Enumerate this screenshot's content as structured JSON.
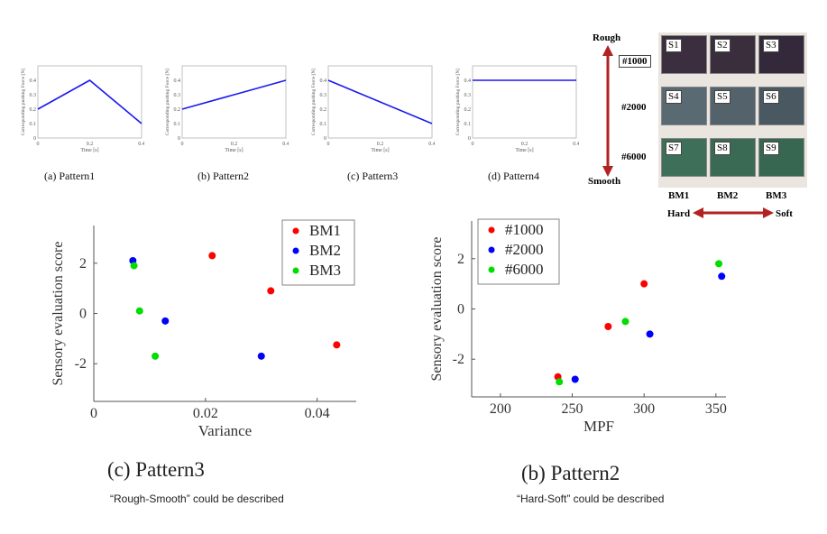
{
  "pattern_panels": [
    {
      "caption": "(a) Pattern1"
    },
    {
      "caption": "(b) Pattern2"
    },
    {
      "caption": "(c) Pattern3"
    },
    {
      "caption": "(d) Pattern4"
    }
  ],
  "sample_photo": {
    "top_label": "Rough",
    "bottom_label": "Smooth",
    "row_labels": [
      "#1000",
      "#2000",
      "#6000"
    ],
    "col_labels": [
      "BM1",
      "BM2",
      "BM3"
    ],
    "left_direction": "Hard",
    "right_direction": "Soft",
    "tiles": [
      {
        "label": "S1",
        "color": "#3b2f3f"
      },
      {
        "label": "S2",
        "color": "#3a2e3d"
      },
      {
        "label": "S3",
        "color": "#34293a"
      },
      {
        "label": "S4",
        "color": "#5a6a73"
      },
      {
        "label": "S5",
        "color": "#54626b"
      },
      {
        "label": "S6",
        "color": "#4a5862"
      },
      {
        "label": "S7",
        "color": "#3e6f58"
      },
      {
        "label": "S8",
        "color": "#3b6a54"
      },
      {
        "label": "S9",
        "color": "#376751"
      }
    ],
    "arrow_color": "#b22222"
  },
  "left_plot": {
    "caption": "(c) Pattern3",
    "note": "“Rough-Smooth” could be described"
  },
  "right_plot": {
    "caption": "(b) Pattern2",
    "note": "“Hard-Soft” could be described"
  },
  "chart_data": [
    {
      "type": "line",
      "id": "pattern1",
      "ylabel": "Corresponding pushing Force [N]",
      "xlabel": "Time [s]",
      "xlim": [
        0,
        0.4
      ],
      "ylim": [
        0,
        0.5
      ],
      "xticks": [
        "0",
        "0.2",
        "0.4"
      ],
      "yticks": [
        "0",
        "0.1",
        "0.2",
        "0.3",
        "0.4"
      ],
      "series": [
        {
          "x": [
            0,
            0.2,
            0.4
          ],
          "y": [
            0.2,
            0.4,
            0.1
          ]
        }
      ]
    },
    {
      "type": "line",
      "id": "pattern2",
      "ylabel": "Corresponding pushing Force [N]",
      "xlabel": "Time [s]",
      "xlim": [
        0,
        0.4
      ],
      "ylim": [
        0,
        0.5
      ],
      "xticks": [
        "0",
        "0.2",
        "0.4"
      ],
      "yticks": [
        "0",
        "0.1",
        "0.2",
        "0.3",
        "0.4"
      ],
      "series": [
        {
          "x": [
            0,
            0.4
          ],
          "y": [
            0.2,
            0.4
          ]
        }
      ]
    },
    {
      "type": "line",
      "id": "pattern3",
      "ylabel": "Corresponding pushing Force [N]",
      "xlabel": "Time [s]",
      "xlim": [
        0,
        0.4
      ],
      "ylim": [
        0,
        0.5
      ],
      "xticks": [
        "0",
        "0.2",
        "0.4"
      ],
      "yticks": [
        "0",
        "0.1",
        "0.2",
        "0.3",
        "0.4"
      ],
      "series": [
        {
          "x": [
            0,
            0.4
          ],
          "y": [
            0.4,
            0.1
          ]
        }
      ]
    },
    {
      "type": "line",
      "id": "pattern4",
      "ylabel": "Corresponding pushing Force [N]",
      "xlabel": "Time [s]",
      "xlim": [
        0,
        0.4
      ],
      "ylim": [
        0,
        0.5
      ],
      "xticks": [
        "0",
        "0.2",
        "0.4"
      ],
      "yticks": [
        "0",
        "0.1",
        "0.2",
        "0.3",
        "0.4"
      ],
      "series": [
        {
          "x": [
            0,
            0.4
          ],
          "y": [
            0.4,
            0.4
          ]
        }
      ]
    },
    {
      "type": "scatter",
      "id": "variance",
      "xlabel": "Variance",
      "ylabel": "Sensory evaluation score",
      "xlim": [
        0,
        0.047
      ],
      "ylim": [
        -3.5,
        3.5
      ],
      "xticks": [
        "0",
        "0.02",
        "0.04"
      ],
      "yticks": [
        "-2",
        "0",
        "2"
      ],
      "legend_position": "top-right",
      "series": [
        {
          "name": "BM1",
          "color": "#ff0000",
          "points": [
            [
              0.0212,
              2.3
            ],
            [
              0.0317,
              0.9
            ],
            [
              0.0435,
              -1.25
            ]
          ]
        },
        {
          "name": "BM2",
          "color": "#0000ff",
          "points": [
            [
              0.007,
              2.1
            ],
            [
              0.0128,
              -0.3
            ],
            [
              0.03,
              -1.7
            ]
          ]
        },
        {
          "name": "BM3",
          "color": "#00dd00",
          "points": [
            [
              0.0072,
              1.9
            ],
            [
              0.0082,
              0.1
            ],
            [
              0.011,
              -1.7
            ]
          ]
        }
      ]
    },
    {
      "type": "scatter",
      "id": "mpf",
      "xlabel": "MPF",
      "ylabel": "Sensory evaluation score",
      "xlim": [
        180,
        357
      ],
      "ylim": [
        -3.5,
        3.5
      ],
      "xticks": [
        "200",
        "250",
        "300",
        "350"
      ],
      "yticks": [
        "-2",
        "0",
        "2"
      ],
      "legend_position": "top-left",
      "series": [
        {
          "name": "#1000",
          "color": "#ff0000",
          "points": [
            [
              240,
              -2.7
            ],
            [
              275,
              -0.7
            ],
            [
              300,
              1.0
            ]
          ]
        },
        {
          "name": "#2000",
          "color": "#0000ff",
          "points": [
            [
              252,
              -2.8
            ],
            [
              304,
              -1.0
            ],
            [
              354,
              1.3
            ]
          ]
        },
        {
          "name": "#6000",
          "color": "#00dd00",
          "points": [
            [
              241,
              -2.9
            ],
            [
              287,
              -0.5
            ],
            [
              352,
              1.8
            ]
          ]
        }
      ]
    }
  ]
}
